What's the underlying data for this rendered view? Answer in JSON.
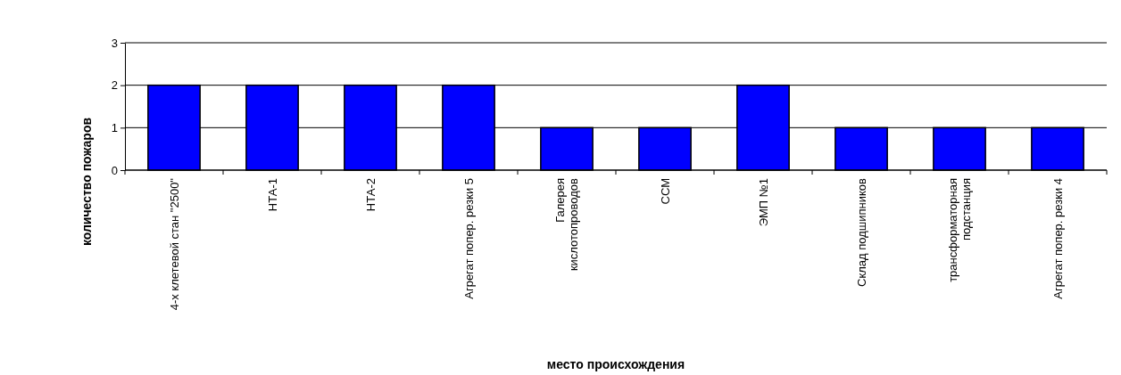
{
  "chart_data": {
    "type": "bar",
    "xlabel": "место происхождения",
    "ylabel": "количество пожаров",
    "categories": [
      "4-х клетевой стан \"2500\"",
      "НТА-1",
      "НТА-2",
      "Агрегат попер. резки 5",
      "Галерея кислотопроводов",
      "ССМ",
      "ЭМП №1",
      "Склад подшипников",
      "трансформаторная подстанция",
      "Агрегат попер. резки 4"
    ],
    "values": [
      2,
      2,
      2,
      2,
      1,
      1,
      2,
      1,
      1,
      1
    ],
    "color": "#0000ff",
    "ylim": [
      0,
      3
    ],
    "yticks": [
      0,
      1,
      2,
      3
    ],
    "grid": "y"
  }
}
